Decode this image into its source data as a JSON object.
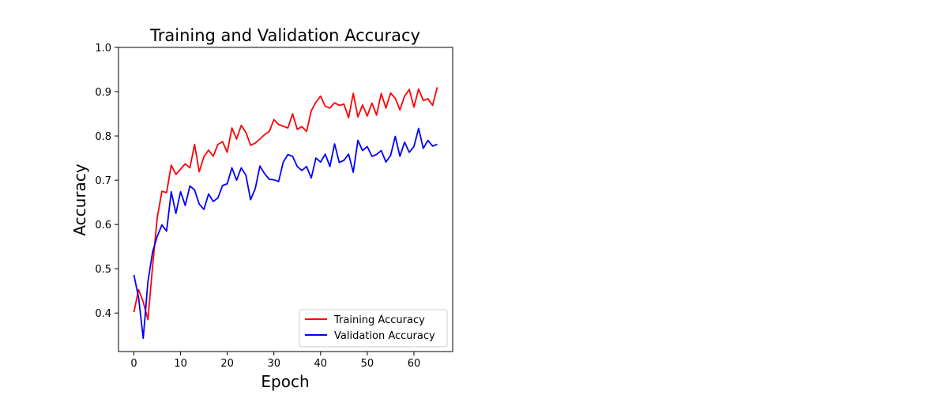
{
  "chart_data": {
    "type": "line",
    "title": "Training and Validation Accuracy",
    "xlabel": "Epoch",
    "ylabel": "Accuracy",
    "xlim": [
      -3.3,
      68.3
    ],
    "ylim": [
      0.313,
      1.0
    ],
    "xticks": [
      0,
      10,
      20,
      30,
      40,
      50,
      60
    ],
    "yticks": [
      0.4,
      0.5,
      0.6,
      0.7,
      0.8,
      0.9,
      1.0
    ],
    "ytick_labels": [
      "0.4",
      "0.5",
      "0.6",
      "0.7",
      "0.8",
      "0.9",
      "1.0"
    ],
    "grid": false,
    "legend_position": "lower-right",
    "x": [
      0,
      1,
      2,
      3,
      4,
      5,
      6,
      7,
      8,
      9,
      10,
      11,
      12,
      13,
      14,
      15,
      16,
      17,
      18,
      19,
      20,
      21,
      22,
      23,
      24,
      25,
      26,
      27,
      28,
      29,
      30,
      31,
      32,
      33,
      34,
      35,
      36,
      37,
      38,
      39,
      40,
      41,
      42,
      43,
      44,
      45,
      46,
      47,
      48,
      49,
      50,
      51,
      52,
      53,
      54,
      55,
      56,
      57,
      58,
      59,
      60,
      61,
      62,
      63,
      64,
      65
    ],
    "series": [
      {
        "name": "Training Accuracy",
        "color": "#ff0000",
        "values": [
          0.402,
          0.453,
          0.425,
          0.385,
          0.505,
          0.615,
          0.675,
          0.672,
          0.734,
          0.713,
          0.725,
          0.737,
          0.728,
          0.781,
          0.719,
          0.753,
          0.768,
          0.754,
          0.781,
          0.787,
          0.763,
          0.818,
          0.793,
          0.824,
          0.808,
          0.779,
          0.784,
          0.793,
          0.803,
          0.81,
          0.837,
          0.826,
          0.822,
          0.818,
          0.85,
          0.815,
          0.821,
          0.81,
          0.857,
          0.876,
          0.89,
          0.867,
          0.863,
          0.875,
          0.869,
          0.872,
          0.841,
          0.896,
          0.843,
          0.87,
          0.845,
          0.874,
          0.847,
          0.896,
          0.863,
          0.897,
          0.885,
          0.859,
          0.89,
          0.905,
          0.865,
          0.906,
          0.88,
          0.884,
          0.869,
          0.91
        ]
      },
      {
        "name": "Validation Accuracy",
        "color": "#0000ff",
        "values": [
          0.486,
          0.435,
          0.343,
          0.47,
          0.538,
          0.573,
          0.599,
          0.585,
          0.674,
          0.625,
          0.674,
          0.643,
          0.687,
          0.678,
          0.646,
          0.634,
          0.669,
          0.652,
          0.66,
          0.688,
          0.692,
          0.728,
          0.7,
          0.728,
          0.711,
          0.656,
          0.681,
          0.732,
          0.715,
          0.702,
          0.701,
          0.697,
          0.741,
          0.758,
          0.754,
          0.731,
          0.722,
          0.731,
          0.705,
          0.75,
          0.741,
          0.759,
          0.731,
          0.782,
          0.74,
          0.745,
          0.759,
          0.718,
          0.79,
          0.767,
          0.776,
          0.754,
          0.758,
          0.767,
          0.741,
          0.756,
          0.799,
          0.754,
          0.786,
          0.763,
          0.776,
          0.817,
          0.772,
          0.79,
          0.777,
          0.781
        ]
      }
    ]
  }
}
